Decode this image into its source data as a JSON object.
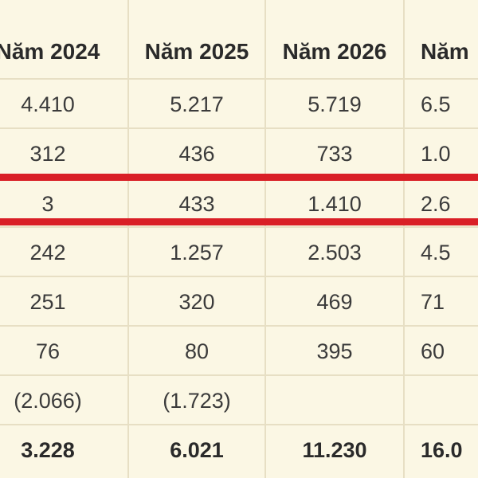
{
  "header": [
    "Năm 2024",
    "Năm 2025",
    "Năm 2026",
    "Năm"
  ],
  "rows": [
    [
      "4.410",
      "5.217",
      "5.719",
      "6.5"
    ],
    [
      "312",
      "436",
      "733",
      "1.0"
    ],
    [
      "3",
      "433",
      "1.410",
      "2.6"
    ],
    [
      "242",
      "1.257",
      "2.503",
      "4.5"
    ],
    [
      "251",
      "320",
      "469",
      "71"
    ],
    [
      "76",
      "80",
      "395",
      "60"
    ],
    [
      "(2.066)",
      "(1.723)",
      "",
      ""
    ],
    [
      "3.228",
      "6.021",
      "11.230",
      "16.0"
    ]
  ],
  "colors": {
    "background": "#fbf7e4",
    "highlight": "#d91f26",
    "grid": "#e7dfc4"
  }
}
